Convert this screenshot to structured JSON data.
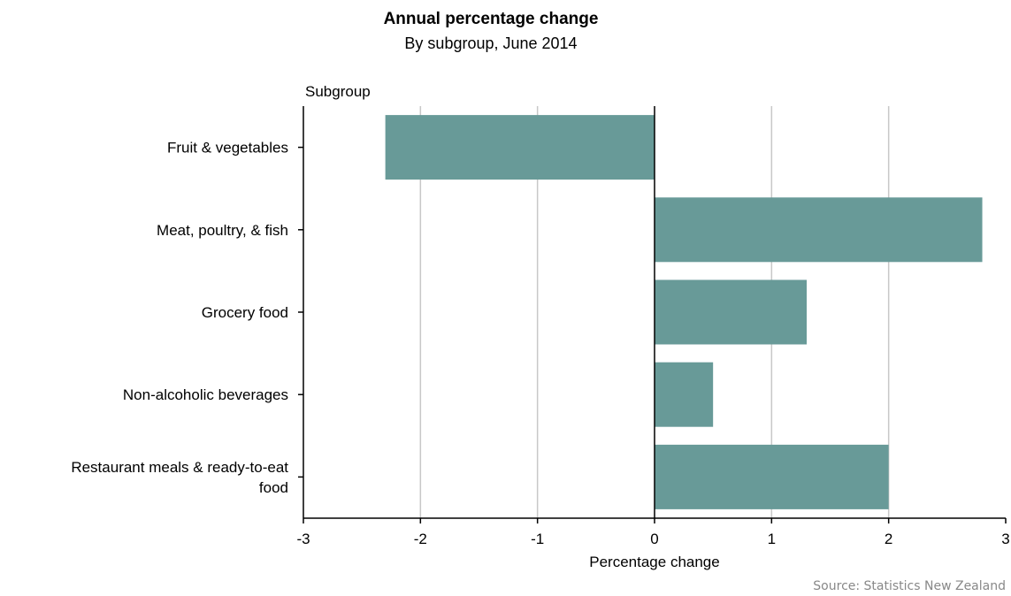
{
  "chart_data": {
    "type": "bar",
    "orientation": "horizontal",
    "title": "Annual percentage change",
    "subtitle": "By subgroup, June 2014",
    "ylabel": "Subgroup",
    "xlabel": "Percentage change",
    "source": "Source: Statistics New Zealand",
    "categories": [
      [
        "Fruit & vegetables"
      ],
      [
        "Meat, poultry, & fish"
      ],
      [
        "Grocery food"
      ],
      [
        "Non-alcoholic beverages"
      ],
      [
        "Restaurant meals & ready-to-eat",
        "food"
      ]
    ],
    "values": [
      -2.3,
      2.8,
      1.3,
      0.5,
      2.0
    ],
    "xlim": [
      -3,
      3
    ],
    "xticks": [
      "-3",
      "-2",
      "-1",
      "0",
      "1",
      "2",
      "3"
    ],
    "grid": true,
    "bar_color": "#689a98"
  }
}
